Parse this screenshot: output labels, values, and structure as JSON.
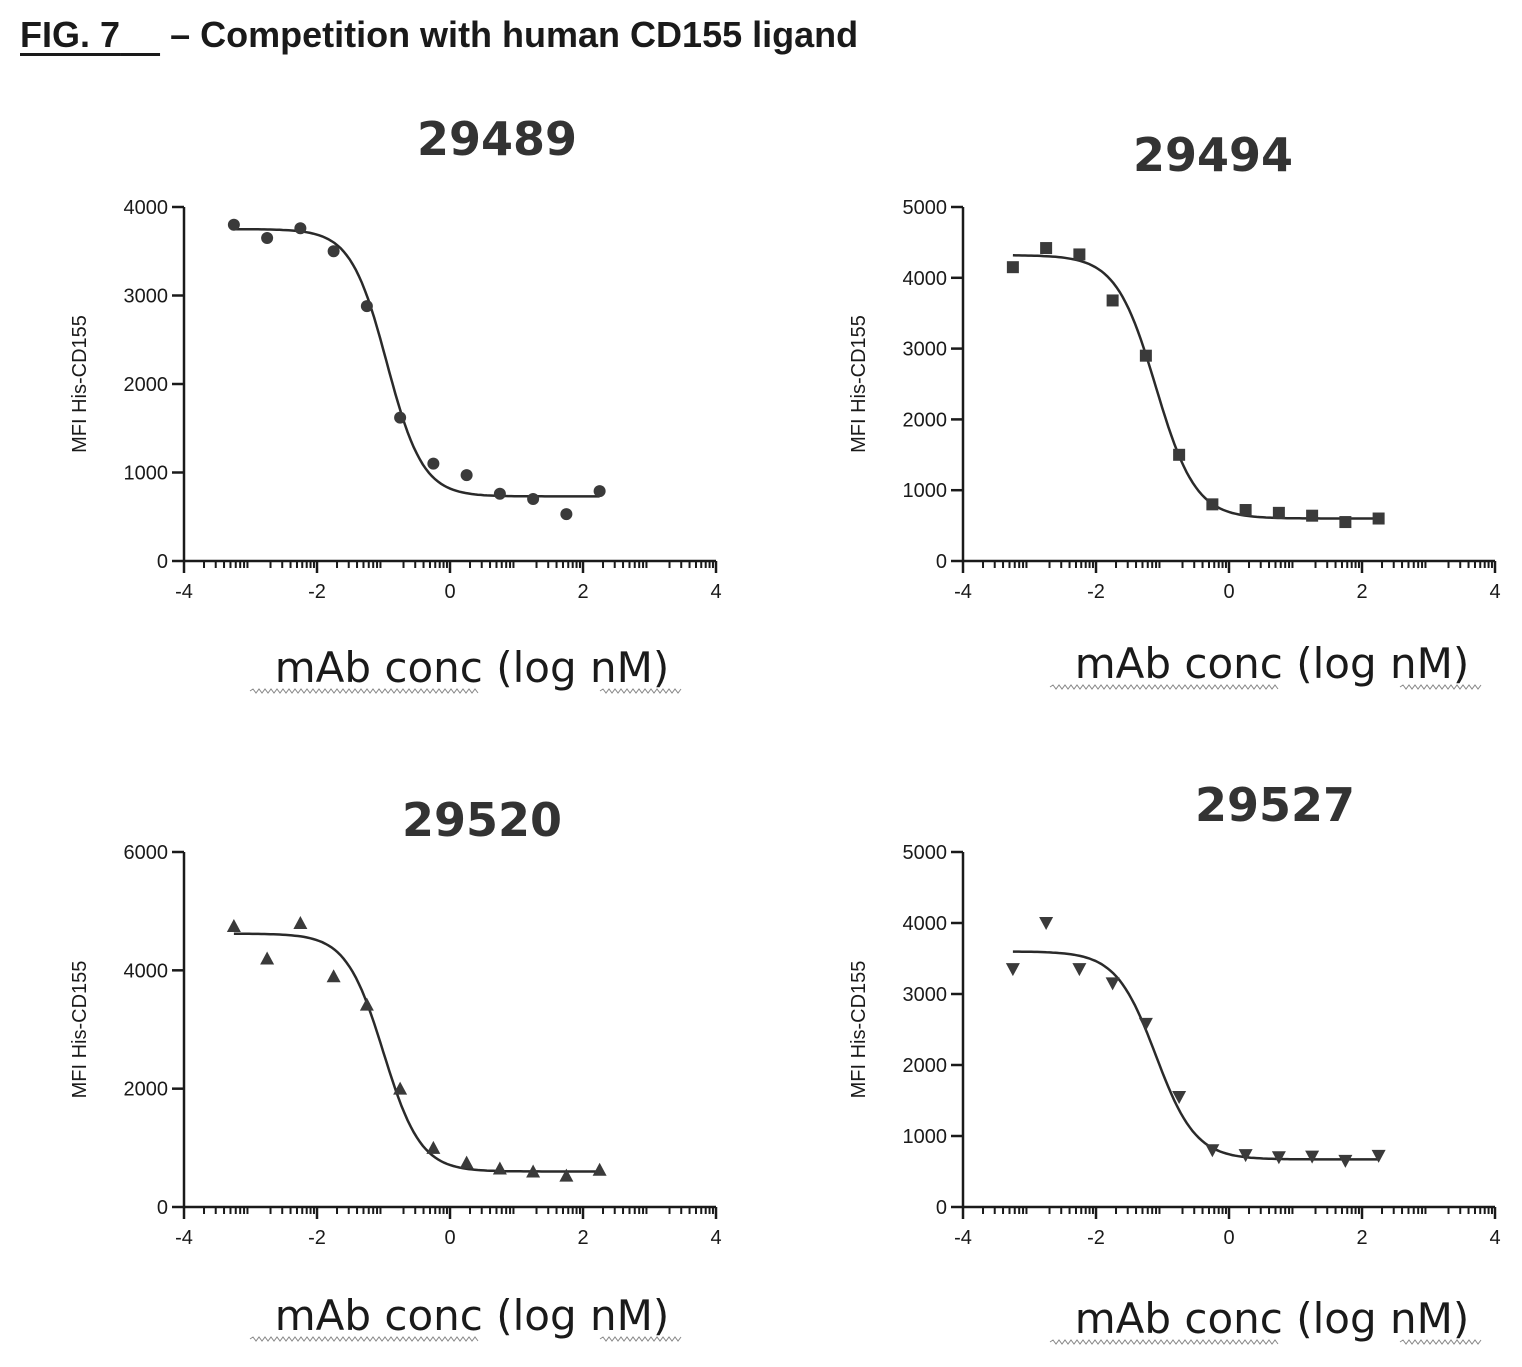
{
  "figure": {
    "label": "FIG. 7",
    "title": "– Competition with human CD155 ligand"
  },
  "chart_data": [
    {
      "type": "scatter",
      "title": "29489",
      "xlabel": "mAb conc (log nM)",
      "ylabel": "MFI His-CD155",
      "xlim": [
        -4,
        4
      ],
      "ylim": [
        0,
        4000
      ],
      "xticks": [
        "-4",
        "-2",
        "0",
        "2",
        "4"
      ],
      "yticks": [
        "0",
        "1000",
        "2000",
        "3000",
        "4000"
      ],
      "marker": "circle",
      "x": [
        -3.25,
        -2.75,
        -2.25,
        -1.75,
        -1.25,
        -0.75,
        -0.25,
        0.25,
        0.75,
        1.25,
        1.75,
        2.25
      ],
      "y": [
        3800,
        3650,
        3760,
        3500,
        2880,
        1620,
        1100,
        970,
        760,
        700,
        530,
        790
      ],
      "fit": {
        "top": 3750,
        "bottom": 730,
        "log_ic50": -0.95,
        "hill": 1.6
      }
    },
    {
      "type": "scatter",
      "title": "29494",
      "xlabel": "mAb conc (log nM)",
      "ylabel": "MFI His-CD155",
      "xlim": [
        -4,
        4
      ],
      "ylim": [
        0,
        5000
      ],
      "xticks": [
        "-4",
        "-2",
        "0",
        "2",
        "4"
      ],
      "yticks": [
        "0",
        "1000",
        "2000",
        "3000",
        "4000",
        "5000"
      ],
      "marker": "square",
      "x": [
        -3.25,
        -2.75,
        -2.25,
        -1.75,
        -1.25,
        -0.75,
        -0.25,
        0.25,
        0.75,
        1.25,
        1.75,
        2.25
      ],
      "y": [
        4150,
        4420,
        4330,
        3680,
        2900,
        1500,
        800,
        720,
        680,
        640,
        550,
        600
      ],
      "fit": {
        "top": 4320,
        "bottom": 600,
        "log_ic50": -1.1,
        "hill": 1.45
      }
    },
    {
      "type": "scatter",
      "title": "29520",
      "xlabel": "mAb conc (log nM)",
      "ylabel": "MFI His-CD155",
      "xlim": [
        -4,
        4
      ],
      "ylim": [
        0,
        6000
      ],
      "xticks": [
        "-4",
        "-2",
        "0",
        "2",
        "4"
      ],
      "yticks": [
        "0",
        "2000",
        "4000",
        "6000"
      ],
      "marker": "triangle-up",
      "x": [
        -3.25,
        -2.75,
        -2.25,
        -1.75,
        -1.25,
        -0.75,
        -0.25,
        0.25,
        0.75,
        1.25,
        1.75,
        2.25
      ],
      "y": [
        4750,
        4200,
        4800,
        3900,
        3420,
        2000,
        1000,
        750,
        650,
        600,
        530,
        630
      ],
      "fit": {
        "top": 4620,
        "bottom": 600,
        "log_ic50": -1.0,
        "hill": 1.55
      }
    },
    {
      "type": "scatter",
      "title": "29527",
      "xlabel": "mAb conc (log nM)",
      "ylabel": "MFI His-CD155",
      "xlim": [
        -4,
        4
      ],
      "ylim": [
        0,
        5000
      ],
      "xticks": [
        "-4",
        "-2",
        "0",
        "2",
        "4"
      ],
      "yticks": [
        "0",
        "1000",
        "2000",
        "3000",
        "4000",
        "5000"
      ],
      "marker": "triangle-down",
      "x": [
        -3.25,
        -2.75,
        -2.25,
        -1.75,
        -1.25,
        -0.75,
        -0.25,
        0.25,
        0.75,
        1.25,
        1.75,
        2.25
      ],
      "y": [
        3350,
        4000,
        3350,
        3150,
        2580,
        1550,
        800,
        730,
        700,
        710,
        650,
        720
      ],
      "fit": {
        "top": 3600,
        "bottom": 670,
        "log_ic50": -1.1,
        "hill": 1.45
      }
    }
  ]
}
